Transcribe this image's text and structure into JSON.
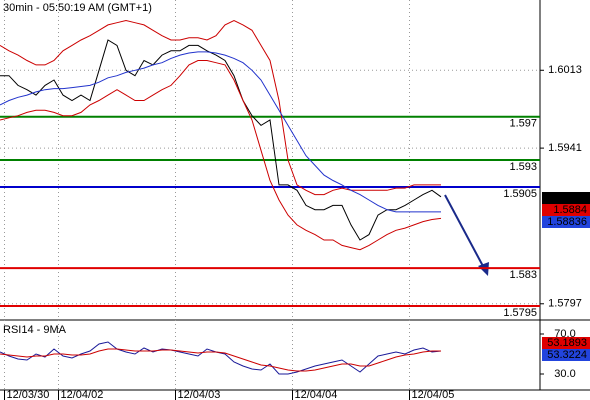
{
  "chart_data": [
    {
      "type": "line",
      "title": "30min - 05:50:19 AM (GMT+1)",
      "x": [
        0,
        1,
        2,
        3,
        4,
        5,
        6,
        7,
        8,
        9,
        10,
        11,
        12,
        13,
        14,
        15,
        16,
        17,
        18,
        19,
        20,
        21,
        22,
        23,
        24,
        25,
        26,
        27,
        28,
        29,
        30,
        31,
        32,
        33,
        34,
        35,
        36,
        37,
        38,
        39,
        40,
        41,
        42,
        43,
        44,
        45,
        46,
        47,
        48,
        49
      ],
      "xlim": [
        0,
        60
      ],
      "xticks": [
        {
          "value": 0.5,
          "label": "12/03/30"
        },
        {
          "value": 6.5,
          "label": "12/04/02"
        },
        {
          "value": 19.5,
          "label": "12/04/03"
        },
        {
          "value": 32.5,
          "label": "12/04/04"
        },
        {
          "value": 45.5,
          "label": "12/04/05"
        }
      ],
      "ylim": [
        1.5782,
        1.6078
      ],
      "yticks": [
        1.5797,
        1.5941,
        1.6013
      ],
      "grid": true,
      "series": [
        {
          "color": "#000000",
          "values": [
            1.6008,
            1.6008,
            1.5999,
            1.5995,
            1.599,
            1.5999,
            1.6004,
            1.599,
            1.5985,
            1.599,
            1.5985,
            1.6013,
            1.6041,
            1.6036,
            1.6013,
            1.6008,
            1.6022,
            1.6018,
            1.6027,
            1.6031,
            1.6031,
            1.6036,
            1.6036,
            1.6031,
            1.6027,
            1.6022,
            1.6008,
            1.5985,
            1.5971,
            1.5962,
            1.5967,
            1.5907,
            1.5907,
            1.5902,
            1.5888,
            1.5884,
            1.5884,
            1.5888,
            1.5888,
            1.587,
            1.5856,
            1.5861,
            1.5879,
            1.5884,
            1.5884,
            1.5888,
            1.5893,
            1.5898,
            1.5902,
            1.5896
          ]
        },
        {
          "color": "#cc0000",
          "values": [
            1.6036,
            1.6031,
            1.6027,
            1.6022,
            1.6018,
            1.6018,
            1.6022,
            1.6031,
            1.6036,
            1.6041,
            1.6045,
            1.605,
            1.6055,
            1.6057,
            1.6059,
            1.6057,
            1.6055,
            1.605,
            1.6045,
            1.6041,
            1.6041,
            1.6043,
            1.6043,
            1.6041,
            1.6045,
            1.6055,
            1.6059,
            1.6055,
            1.605,
            1.6036,
            1.6022,
            1.5985,
            1.593,
            1.5907,
            1.5902,
            1.5898,
            1.5898,
            1.5902,
            1.5904,
            1.5902,
            1.5902,
            1.5902,
            1.5902,
            1.5902,
            1.5904,
            1.5904,
            1.5907,
            1.5907,
            1.5907,
            1.5907
          ]
        },
        {
          "color": "#cc0000",
          "values": [
            1.5967,
            1.5969,
            1.5971,
            1.5974,
            1.5976,
            1.5976,
            1.5974,
            1.5971,
            1.5971,
            1.5974,
            1.5981,
            1.5985,
            1.599,
            1.5995,
            1.599,
            1.5985,
            1.5985,
            1.599,
            1.5995,
            1.5999,
            1.6008,
            1.6018,
            1.6022,
            1.6022,
            1.602,
            1.6018,
            1.6004,
            1.5985,
            1.5967,
            1.5939,
            1.5911,
            1.5893,
            1.5879,
            1.587,
            1.5865,
            1.5861,
            1.5856,
            1.5856,
            1.5851,
            1.5849,
            1.5847,
            1.5851,
            1.5856,
            1.5861,
            1.5865,
            1.5867,
            1.587,
            1.5873,
            1.5875,
            1.5876
          ]
        },
        {
          "color": "#2233cc",
          "values": [
            1.5981,
            1.5985,
            1.5988,
            1.599,
            1.5993,
            1.5995,
            1.5996,
            1.5996,
            1.5997,
            1.5998,
            1.5999,
            1.6002,
            1.6006,
            1.6008,
            1.6011,
            1.6013,
            1.6015,
            1.6018,
            1.602,
            1.6024,
            1.6027,
            1.6029,
            1.603,
            1.603,
            1.6029,
            1.6027,
            1.6024,
            1.602,
            1.6013,
            1.6004,
            1.599,
            1.5976,
            1.5962,
            1.5948,
            1.5934,
            1.5925,
            1.5916,
            1.5911,
            1.5907,
            1.5902,
            1.5898,
            1.5893,
            1.5888,
            1.5884,
            1.5882,
            1.5882,
            1.5882,
            1.5882,
            1.5882,
            1.5882
          ]
        }
      ],
      "levels": [
        {
          "value": 1.597,
          "color": "#008000"
        },
        {
          "value": 1.593,
          "color": "#008000"
        },
        {
          "value": 1.5905,
          "color": "#0000cc"
        },
        {
          "value": 1.583,
          "color": "#e00000"
        },
        {
          "value": 1.5795,
          "color": "#e00000"
        }
      ],
      "tags": [
        {
          "value": 1.5896,
          "color": "#000000"
        },
        {
          "value": 1.5884,
          "color": "#e00000"
        },
        {
          "value": 1.58836,
          "color": "#2244dd"
        }
      ]
    },
    {
      "type": "line",
      "title": "RSI14 - 9MA",
      "x": [
        0,
        1,
        2,
        3,
        4,
        5,
        6,
        7,
        8,
        9,
        10,
        11,
        12,
        13,
        14,
        15,
        16,
        17,
        18,
        19,
        20,
        21,
        22,
        23,
        24,
        25,
        26,
        27,
        28,
        29,
        30,
        31,
        32,
        33,
        34,
        35,
        36,
        37,
        38,
        39,
        40,
        41,
        42,
        43,
        44,
        45,
        46,
        47,
        48,
        49
      ],
      "xlim": [
        0,
        60
      ],
      "ylim": [
        14,
        82
      ],
      "yticks": [
        {
          "value": 30,
          "label": "30.0"
        },
        {
          "value": 70,
          "label": "70.0"
        }
      ],
      "series": [
        {
          "color": "#1a1a99",
          "values": [
            52,
            48,
            45,
            44,
            50,
            47,
            55,
            48,
            46,
            50,
            53,
            60,
            62,
            55,
            52,
            50,
            56,
            52,
            55,
            54,
            52,
            50,
            48,
            55,
            52,
            50,
            42,
            38,
            35,
            34,
            40,
            30,
            30,
            32,
            35,
            38,
            40,
            42,
            44,
            38,
            32,
            40,
            48,
            50,
            52,
            50,
            54,
            56,
            52,
            53
          ]
        },
        {
          "color": "#cc0000",
          "values": [
            50,
            49,
            48,
            47,
            48,
            48,
            50,
            50,
            49,
            49,
            50,
            53,
            55,
            55,
            54,
            53,
            53,
            53,
            54,
            54,
            53,
            52,
            51,
            52,
            52,
            51,
            48,
            45,
            42,
            39,
            38,
            36,
            34,
            33,
            33,
            34,
            36,
            38,
            40,
            40,
            38,
            38,
            41,
            44,
            47,
            49,
            50,
            52,
            53,
            53
          ]
        }
      ],
      "tags": [
        {
          "value": 53.1893,
          "color": "#e00000"
        },
        {
          "value": 53.3224,
          "color": "#2244dd"
        }
      ]
    }
  ]
}
